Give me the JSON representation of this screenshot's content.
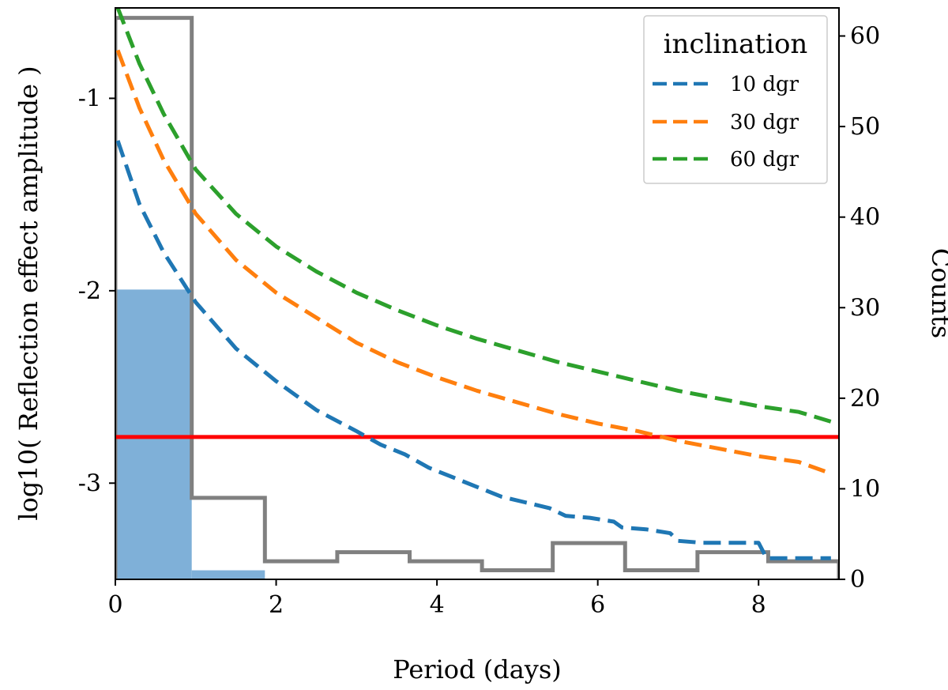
{
  "chart_data": {
    "type": "line",
    "xlabel": "Period (days)",
    "ylabel": "log10( Reflection effect amplitude )",
    "y2label": "Counts",
    "xlim": [
      0,
      9
    ],
    "ylim": [
      -3.5,
      -0.53
    ],
    "y2lim": [
      0,
      63.1
    ],
    "xticks": [
      0,
      2,
      4,
      6,
      8
    ],
    "xtick_labels": [
      "0",
      "2",
      "4",
      "6",
      "8"
    ],
    "yticks": [
      -1,
      -2,
      -3
    ],
    "ytick_labels": [
      "-1",
      "-2",
      "-3"
    ],
    "y2ticks": [
      0,
      10,
      20,
      30,
      40,
      50,
      60
    ],
    "y2tick_labels": [
      "0",
      "10",
      "20",
      "30",
      "40",
      "50",
      "60"
    ],
    "legend": {
      "title": "inclination",
      "position": "top-right",
      "entries": [
        "10 dgr",
        "30 dgr",
        "60 dgr"
      ]
    },
    "series": [
      {
        "name": "10 dgr",
        "style": "dashed",
        "color": "#1f77b4",
        "x": [
          0.03,
          0.3,
          0.6,
          1.0,
          1.5,
          2.0,
          2.5,
          3.0,
          3.3,
          3.6,
          3.9,
          4.2,
          4.5,
          4.8,
          5.1,
          5.4,
          5.6,
          5.9,
          6.2,
          6.3,
          6.6,
          6.9,
          7.0,
          7.3,
          7.6,
          7.9,
          8.0,
          8.1,
          8.5,
          8.9
        ],
        "y": [
          -1.22,
          -1.55,
          -1.8,
          -2.06,
          -2.3,
          -2.47,
          -2.62,
          -2.73,
          -2.8,
          -2.85,
          -2.92,
          -2.97,
          -3.02,
          -3.07,
          -3.1,
          -3.13,
          -3.17,
          -3.18,
          -3.2,
          -3.23,
          -3.24,
          -3.26,
          -3.3,
          -3.31,
          -3.31,
          -3.31,
          -3.31,
          -3.39,
          -3.39,
          -3.39
        ]
      },
      {
        "name": "30 dgr",
        "style": "dashed",
        "color": "#ff7f0e",
        "x": [
          0.03,
          0.3,
          0.6,
          1.0,
          1.5,
          2.0,
          2.5,
          3.0,
          3.5,
          4.0,
          4.5,
          5.0,
          5.5,
          6.0,
          6.5,
          7.0,
          7.5,
          8.0,
          8.5,
          8.9
        ],
        "y": [
          -0.75,
          -1.05,
          -1.32,
          -1.6,
          -1.84,
          -2.01,
          -2.14,
          -2.27,
          -2.37,
          -2.45,
          -2.52,
          -2.58,
          -2.64,
          -2.69,
          -2.73,
          -2.78,
          -2.82,
          -2.86,
          -2.89,
          -2.95
        ]
      },
      {
        "name": "60 dgr",
        "style": "dashed",
        "color": "#2ca02c",
        "x": [
          0.03,
          0.3,
          0.6,
          1.0,
          1.5,
          2.0,
          2.5,
          3.0,
          3.5,
          4.0,
          4.5,
          5.0,
          5.5,
          6.0,
          6.5,
          7.0,
          7.5,
          8.0,
          8.5,
          8.9
        ],
        "y": [
          -0.53,
          -0.82,
          -1.08,
          -1.37,
          -1.6,
          -1.77,
          -1.9,
          -2.01,
          -2.1,
          -2.18,
          -2.25,
          -2.31,
          -2.37,
          -2.42,
          -2.47,
          -2.52,
          -2.56,
          -2.6,
          -2.63,
          -2.68
        ]
      }
    ],
    "hline": {
      "y": -2.76,
      "color": "#ff0000"
    },
    "histogram_outline": {
      "axis": "right",
      "color": "#808080",
      "edges": [
        0.0,
        0.95,
        1.86,
        2.76,
        3.66,
        4.56,
        5.44,
        6.34,
        7.24,
        8.12,
        9.0
      ],
      "counts": [
        62,
        9,
        2,
        3,
        2,
        1,
        4,
        1,
        3,
        2
      ]
    },
    "histogram_filled": {
      "axis": "right",
      "color": "#7fb0d8",
      "edges": [
        0.0,
        0.95,
        1.86
      ],
      "counts": [
        32,
        1
      ]
    }
  }
}
